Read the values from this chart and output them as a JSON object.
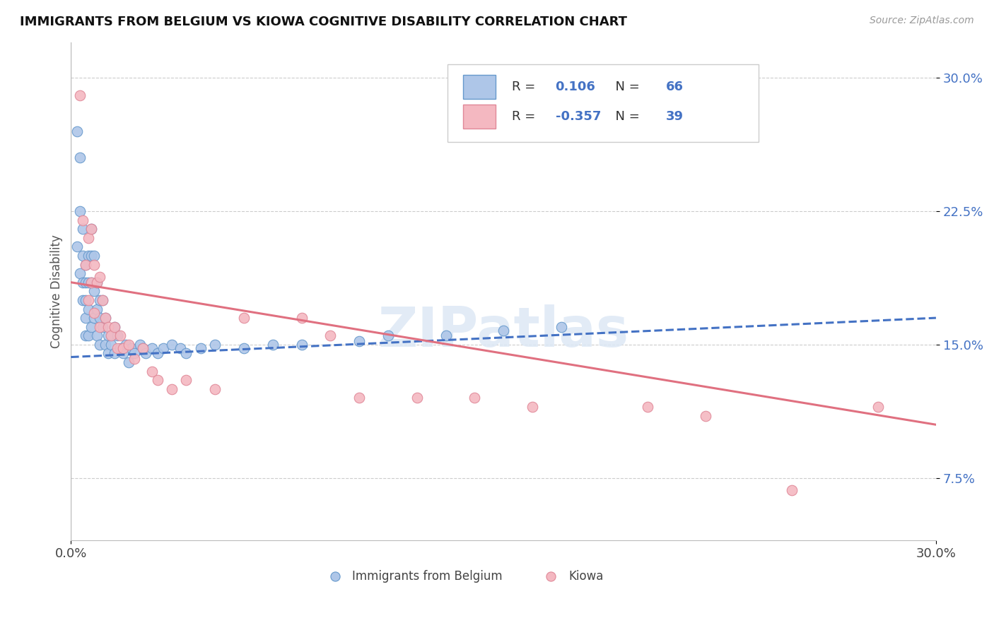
{
  "title": "IMMIGRANTS FROM BELGIUM VS KIOWA COGNITIVE DISABILITY CORRELATION CHART",
  "source_text": "Source: ZipAtlas.com",
  "ylabel": "Cognitive Disability",
  "watermark": "ZIPatlas",
  "xlim": [
    0.0,
    0.3
  ],
  "ylim": [
    0.04,
    0.32
  ],
  "blue_R": 0.106,
  "blue_N": 66,
  "pink_R": -0.357,
  "pink_N": 39,
  "blue_color": "#aec6e8",
  "pink_color": "#f4b8c1",
  "blue_edge_color": "#6699cc",
  "pink_edge_color": "#e08898",
  "blue_line_color": "#4472c4",
  "pink_line_color": "#e07080",
  "legend_blue_label": "Immigrants from Belgium",
  "legend_pink_label": "Kiowa",
  "blue_scatter_x": [
    0.002,
    0.002,
    0.003,
    0.003,
    0.003,
    0.004,
    0.004,
    0.004,
    0.004,
    0.005,
    0.005,
    0.005,
    0.005,
    0.005,
    0.006,
    0.006,
    0.006,
    0.006,
    0.007,
    0.007,
    0.007,
    0.007,
    0.008,
    0.008,
    0.008,
    0.009,
    0.009,
    0.009,
    0.01,
    0.01,
    0.01,
    0.011,
    0.011,
    0.012,
    0.012,
    0.013,
    0.013,
    0.014,
    0.015,
    0.015,
    0.016,
    0.017,
    0.018,
    0.019,
    0.02,
    0.021,
    0.022,
    0.024,
    0.025,
    0.026,
    0.028,
    0.03,
    0.032,
    0.035,
    0.038,
    0.04,
    0.045,
    0.05,
    0.06,
    0.07,
    0.08,
    0.1,
    0.11,
    0.13,
    0.15,
    0.17
  ],
  "blue_scatter_y": [
    0.205,
    0.27,
    0.255,
    0.225,
    0.19,
    0.215,
    0.2,
    0.185,
    0.175,
    0.195,
    0.185,
    0.175,
    0.165,
    0.155,
    0.2,
    0.185,
    0.17,
    0.155,
    0.215,
    0.2,
    0.185,
    0.16,
    0.2,
    0.18,
    0.165,
    0.185,
    0.17,
    0.155,
    0.175,
    0.165,
    0.15,
    0.175,
    0.16,
    0.165,
    0.15,
    0.155,
    0.145,
    0.15,
    0.16,
    0.145,
    0.155,
    0.148,
    0.145,
    0.15,
    0.14,
    0.148,
    0.145,
    0.15,
    0.148,
    0.145,
    0.148,
    0.145,
    0.148,
    0.15,
    0.148,
    0.145,
    0.148,
    0.15,
    0.148,
    0.15,
    0.15,
    0.152,
    0.155,
    0.155,
    0.158,
    0.16
  ],
  "pink_scatter_x": [
    0.003,
    0.004,
    0.005,
    0.006,
    0.006,
    0.007,
    0.007,
    0.008,
    0.008,
    0.009,
    0.01,
    0.01,
    0.011,
    0.012,
    0.013,
    0.014,
    0.015,
    0.016,
    0.017,
    0.018,
    0.02,
    0.022,
    0.025,
    0.028,
    0.03,
    0.035,
    0.04,
    0.05,
    0.06,
    0.08,
    0.09,
    0.1,
    0.12,
    0.14,
    0.16,
    0.2,
    0.22,
    0.25,
    0.28
  ],
  "pink_scatter_y": [
    0.29,
    0.22,
    0.195,
    0.21,
    0.175,
    0.215,
    0.185,
    0.195,
    0.168,
    0.185,
    0.188,
    0.16,
    0.175,
    0.165,
    0.16,
    0.155,
    0.16,
    0.148,
    0.155,
    0.148,
    0.15,
    0.142,
    0.148,
    0.135,
    0.13,
    0.125,
    0.13,
    0.125,
    0.165,
    0.165,
    0.155,
    0.12,
    0.12,
    0.12,
    0.115,
    0.115,
    0.11,
    0.068,
    0.115
  ],
  "blue_trend_x": [
    0.0,
    0.3
  ],
  "blue_trend_y": [
    0.143,
    0.165
  ],
  "pink_trend_x": [
    0.0,
    0.3
  ],
  "pink_trend_y": [
    0.185,
    0.105
  ]
}
